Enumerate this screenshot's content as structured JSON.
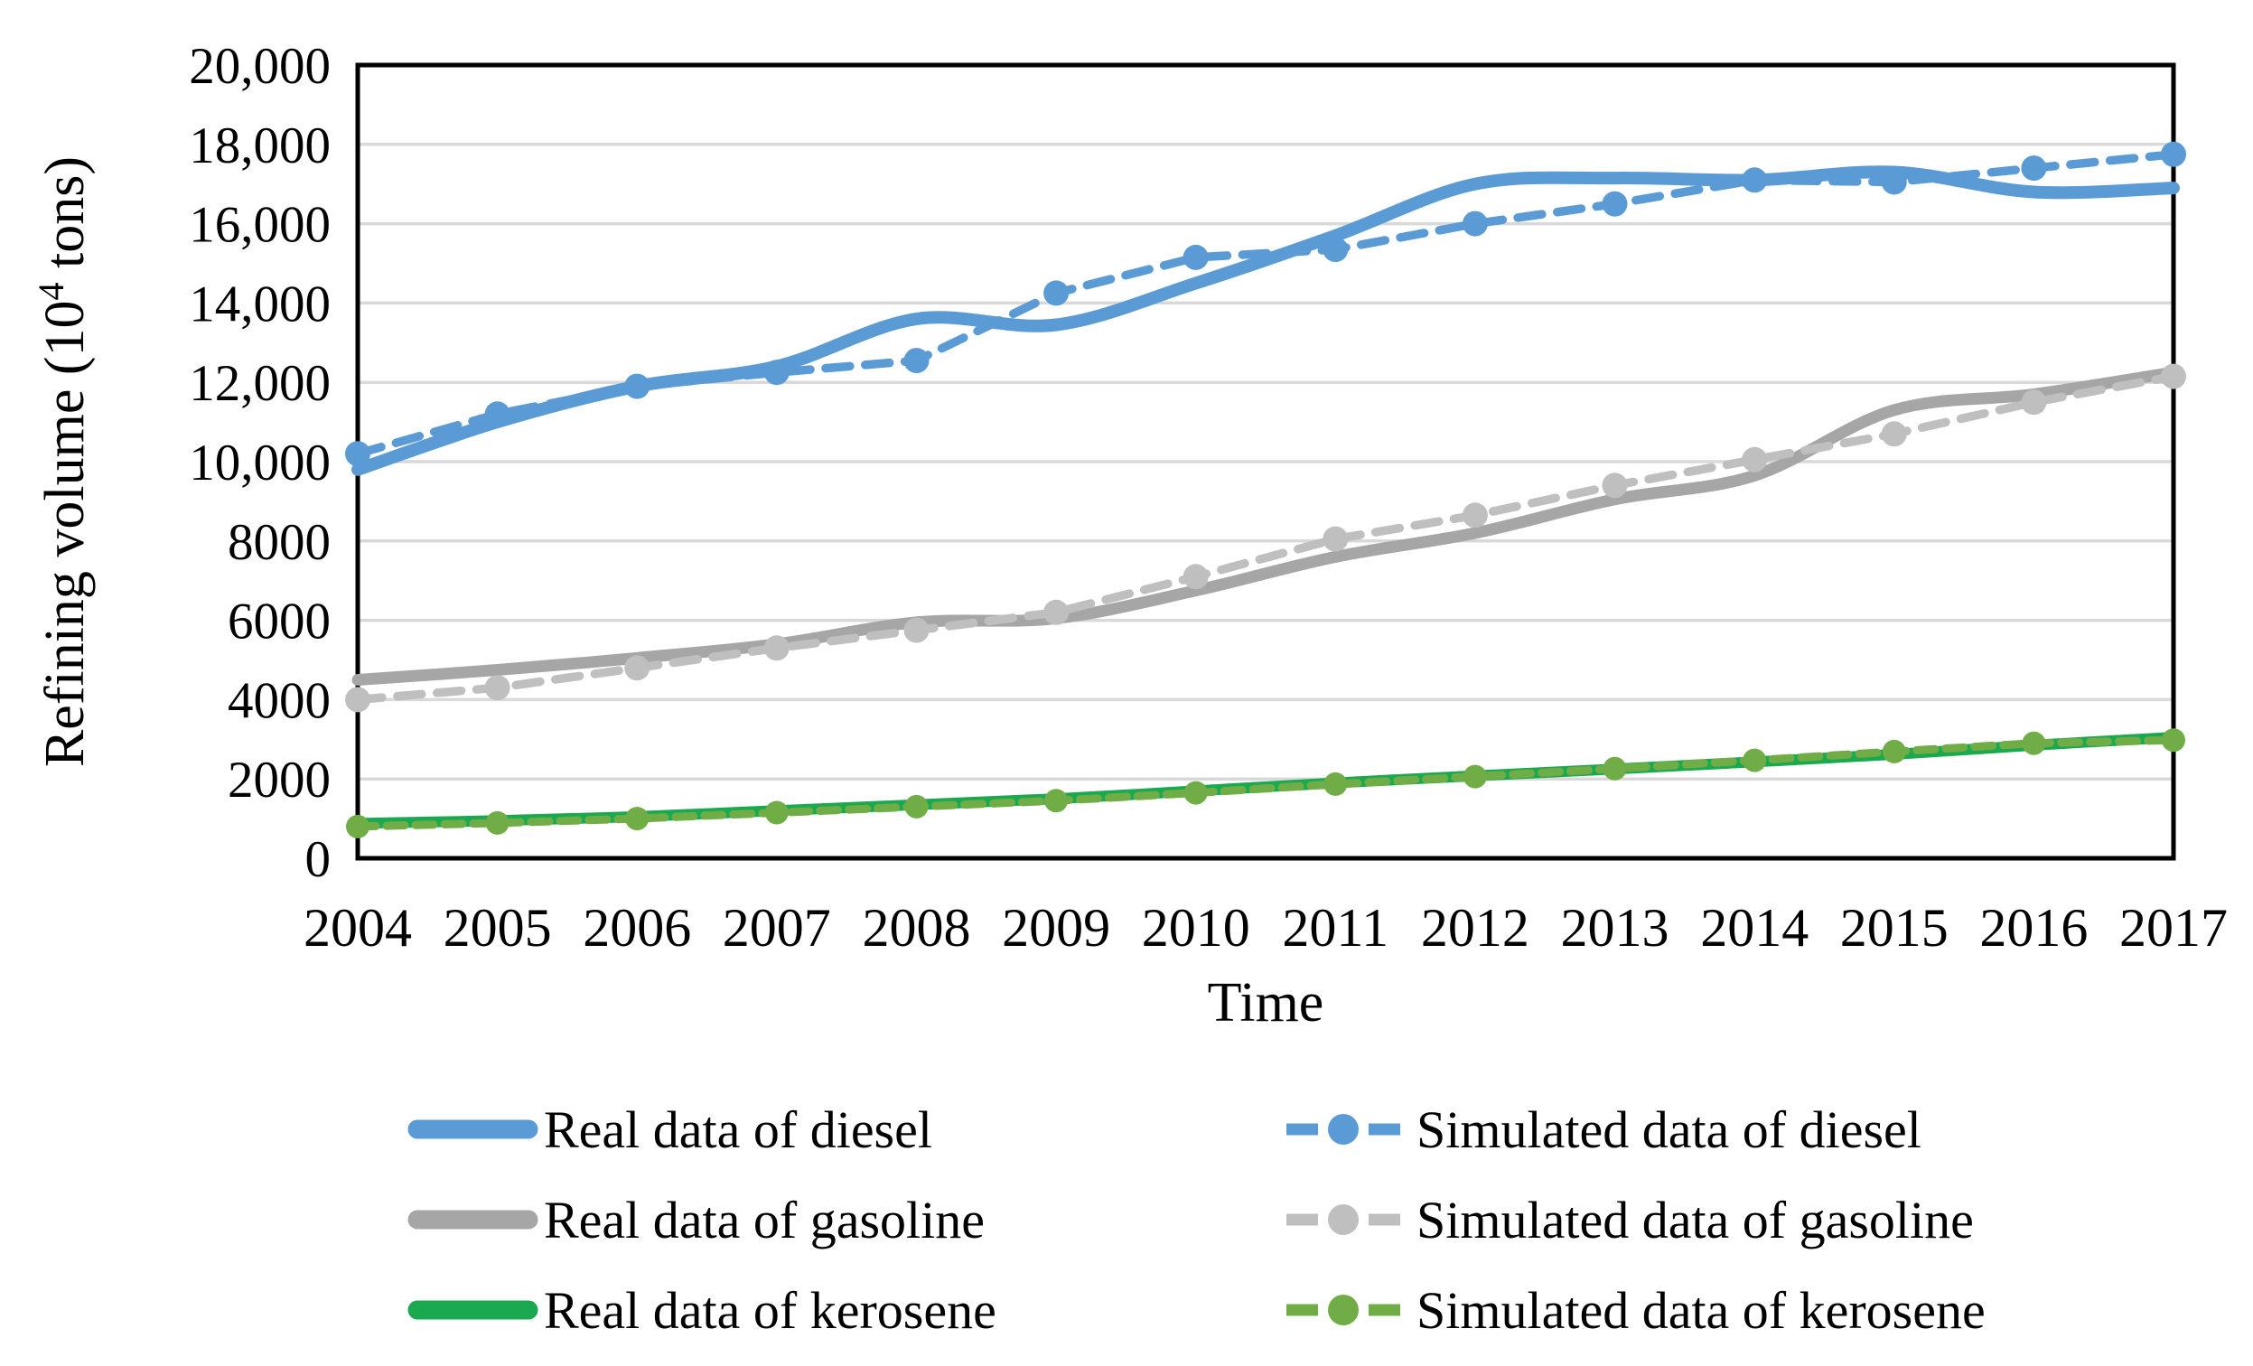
{
  "figure": {
    "xlabel": "Time",
    "ylabel_pre": "Refining volume (10",
    "ylabel_sup": "4",
    "ylabel_post": " tons)",
    "y_ticks": [
      {
        "v": 0,
        "label": "0"
      },
      {
        "v": 2000,
        "label": "2000"
      },
      {
        "v": 4000,
        "label": "4000"
      },
      {
        "v": 6000,
        "label": "6000"
      },
      {
        "v": 8000,
        "label": "8000"
      },
      {
        "v": 10000,
        "label": "10,000"
      },
      {
        "v": 12000,
        "label": "12,000"
      },
      {
        "v": 14000,
        "label": "14,000"
      },
      {
        "v": 16000,
        "label": "16,000"
      },
      {
        "v": 18000,
        "label": "18,000"
      },
      {
        "v": 20000,
        "label": "20,000"
      }
    ]
  },
  "chart_data": {
    "type": "line",
    "title": "",
    "xlabel": "Time",
    "ylabel": "Refining volume (10^4 tons)",
    "x": [
      2004,
      2005,
      2006,
      2007,
      2008,
      2009,
      2010,
      2011,
      2012,
      2013,
      2014,
      2015,
      2016,
      2017
    ],
    "ylim": [
      0,
      20000
    ],
    "y_tick_step": 2000,
    "grid": "horizontal",
    "legend_position": "bottom",
    "series": [
      {
        "name": "Real data of diesel",
        "color": "#5B9BD5",
        "line_style": "solid",
        "smooth": true,
        "width": 14,
        "marker": false,
        "values": [
          9800,
          11000,
          11900,
          12400,
          13600,
          13450,
          14500,
          15700,
          17000,
          17150,
          17100,
          17300,
          16800,
          16900
        ]
      },
      {
        "name": "Real data of gasoline",
        "color": "#A6A6A6",
        "line_style": "solid",
        "smooth": true,
        "width": 13,
        "marker": false,
        "values": [
          4500,
          4750,
          5050,
          5400,
          5950,
          6050,
          6750,
          7600,
          8200,
          9050,
          9650,
          11300,
          11700,
          12250
        ]
      },
      {
        "name": "Real data of kerosene",
        "color": "#1BA94F",
        "line_style": "solid",
        "smooth": true,
        "width": 12,
        "marker": false,
        "values": [
          880,
          950,
          1050,
          1200,
          1350,
          1500,
          1700,
          1900,
          2080,
          2250,
          2430,
          2620,
          2850,
          3050
        ]
      },
      {
        "name": "Simulated data of diesel",
        "color": "#5B9BD5",
        "line_style": "dashed",
        "dash": "27 17",
        "smooth": false,
        "width": 9.5,
        "marker": true,
        "marker_radius": 14,
        "values": [
          10200,
          11200,
          11900,
          12250,
          12550,
          14250,
          15150,
          15350,
          16000,
          16500,
          17100,
          17050,
          17400,
          17750
        ]
      },
      {
        "name": "Simulated data of gasoline",
        "color": "#BFBFBF",
        "line_style": "dashed",
        "dash": "27 17",
        "smooth": false,
        "width": 9.5,
        "marker": true,
        "marker_radius": 14,
        "values": [
          4000,
          4300,
          4800,
          5300,
          5750,
          6200,
          7100,
          8050,
          8650,
          9400,
          10050,
          10700,
          11500,
          12150
        ]
      },
      {
        "name": "Simulated data of kerosene",
        "color": "#70AD47",
        "line_style": "dashed",
        "dash": "20 12",
        "smooth": false,
        "width": 9,
        "marker": true,
        "marker_radius": 13,
        "values": [
          800,
          890,
          1000,
          1150,
          1300,
          1450,
          1650,
          1870,
          2060,
          2260,
          2470,
          2690,
          2900,
          2980
        ]
      }
    ]
  },
  "legend": {
    "items": [
      {
        "label": "Real data of diesel",
        "series": 0
      },
      {
        "label": "Simulated data of diesel",
        "series": 3
      },
      {
        "label": "Real data of gasoline",
        "series": 1
      },
      {
        "label": "Simulated data of gasoline",
        "series": 4
      },
      {
        "label": "Real data of kerosene",
        "series": 2
      },
      {
        "label": "Simulated data of kerosene",
        "series": 5
      }
    ]
  },
  "colors": {
    "diesel": "#5B9BD5",
    "gasoline_real": "#A6A6A6",
    "gasoline_simulated": "#BFBFBF",
    "kerosene_real": "#1BA94F",
    "kerosene_simulated": "#70AD47",
    "gridline": "#D9D9D9",
    "axis": "#000000",
    "background": "#FFFFFF"
  }
}
